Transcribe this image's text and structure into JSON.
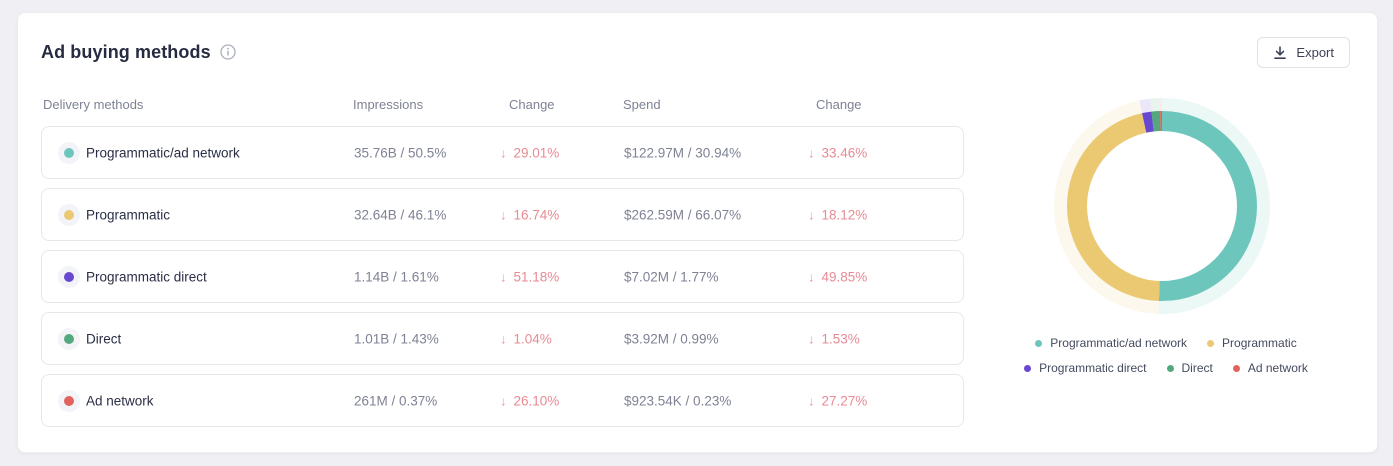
{
  "panel": {
    "title": "Ad buying methods",
    "export_label": "Export"
  },
  "table": {
    "headers": [
      "Delivery methods",
      "Impressions",
      "Change",
      "Spend",
      "Change"
    ],
    "rows": [
      {
        "label": "Programmatic/ad network",
        "color": "#6CC6BC",
        "impressions": "35.76B / 50.5%",
        "impressions_change": "29.01%",
        "spend": "$122.97M / 30.94%",
        "spend_change": "33.46%",
        "change_direction": "down"
      },
      {
        "label": "Programmatic",
        "color": "#EBC973",
        "impressions": "32.64B / 46.1%",
        "impressions_change": "16.74%",
        "spend": "$262.59M / 66.07%",
        "spend_change": "18.12%",
        "change_direction": "down"
      },
      {
        "label": "Programmatic direct",
        "color": "#6847D1",
        "impressions": "1.14B / 1.61%",
        "impressions_change": "51.18%",
        "spend": "$7.02M / 1.77%",
        "spend_change": "49.85%",
        "change_direction": "down"
      },
      {
        "label": "Direct",
        "color": "#54A87E",
        "impressions": "1.01B / 1.43%",
        "impressions_change": "1.04%",
        "spend": "$3.92M / 0.99%",
        "spend_change": "1.53%",
        "change_direction": "down"
      },
      {
        "label": "Ad network",
        "color": "#E2625E",
        "impressions": "261M / 0.37%",
        "impressions_change": "26.10%",
        "spend": "$923.54K / 0.23%",
        "spend_change": "27.27%",
        "change_direction": "down"
      }
    ]
  },
  "chart_data": {
    "type": "pie",
    "donut": true,
    "labels": [
      "Programmatic/ad network",
      "Programmatic",
      "Programmatic direct",
      "Direct",
      "Ad network"
    ],
    "values": [
      50.5,
      46.1,
      1.61,
      1.43,
      0.37
    ],
    "unit": "% of impressions",
    "colors": [
      "#6CC6BC",
      "#EBC973",
      "#6847D1",
      "#54A87E",
      "#E2625E"
    ],
    "outer_ghost_ring_opacity": 0.13,
    "legend_position": "bottom"
  },
  "colors": {
    "page_background": "#f0f0f4",
    "panel_background": "#ffffff",
    "negative_change": "#e88a93",
    "value_text": "#7e8294",
    "label_text": "#2a2e45"
  }
}
